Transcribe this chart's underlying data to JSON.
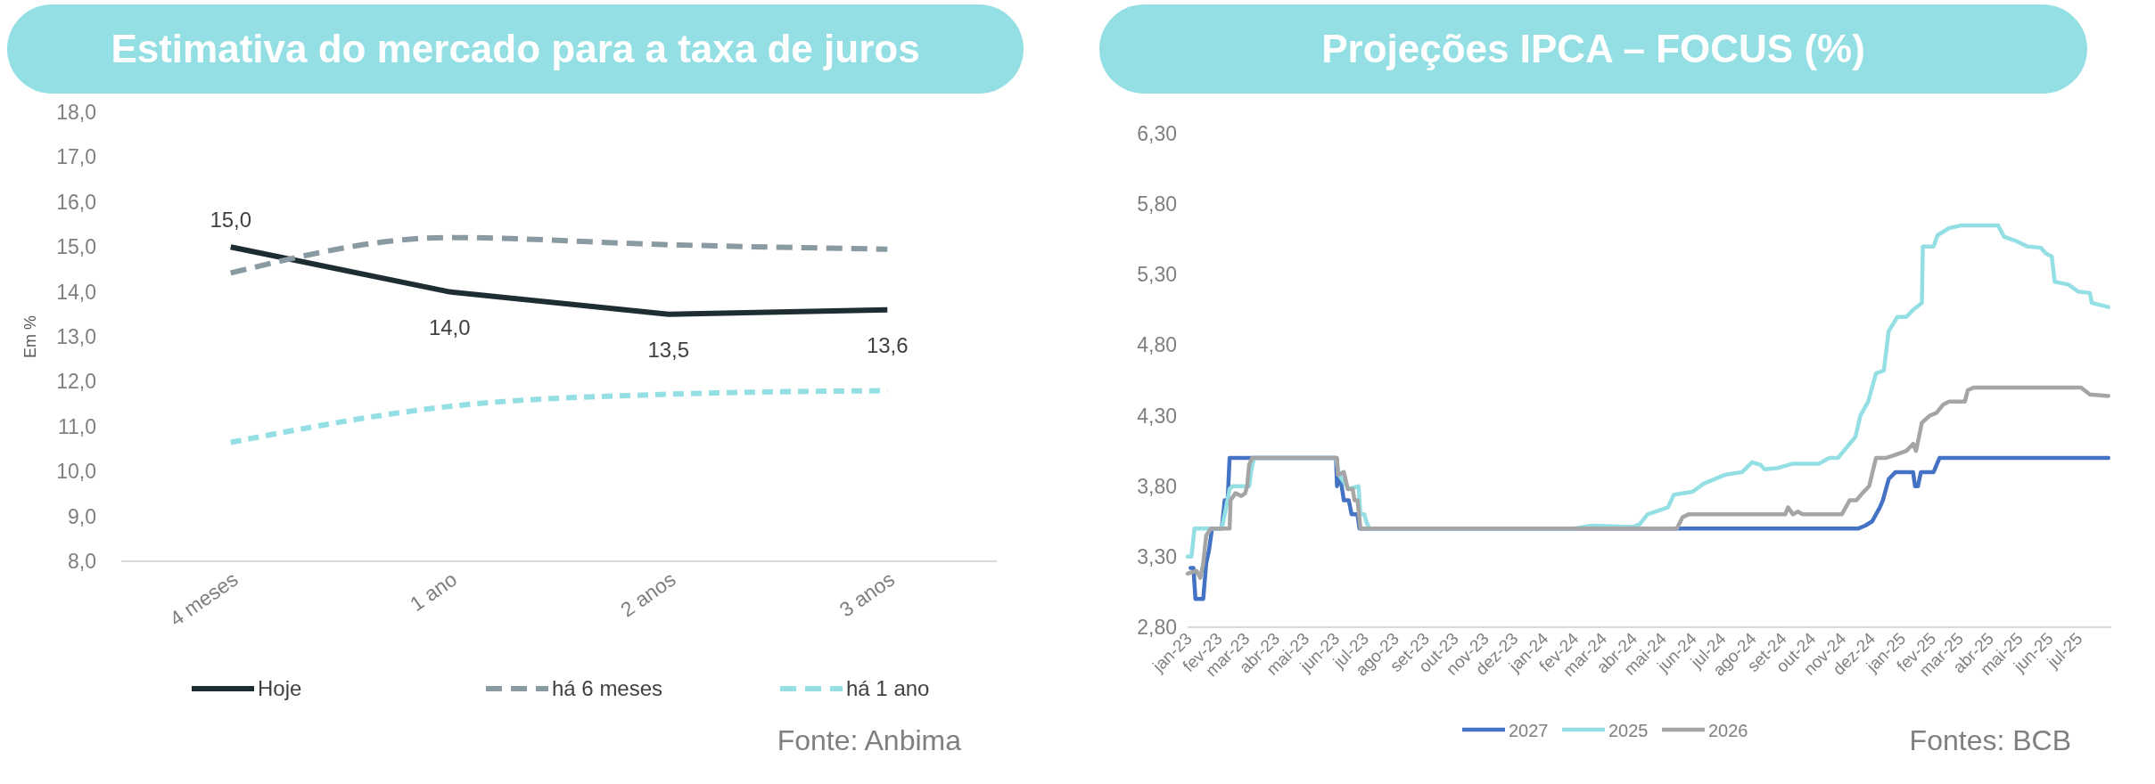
{
  "chart_data": [
    {
      "type": "line",
      "title": "Estimativa do mercado para a taxa de juros",
      "ylabel": "Em %",
      "categories": [
        "4 meses",
        "1 ano",
        "2 anos",
        "3 anos"
      ],
      "series": [
        {
          "name": "Hoje",
          "color": "#1e2d32",
          "values": [
            15.0,
            14.0,
            13.5,
            13.6
          ],
          "value_labels": [
            "15,0",
            "14,0",
            "13,5",
            "13,6"
          ],
          "line_style": "solid"
        },
        {
          "name": "há 6 meses",
          "color": "#8a9aa3",
          "values": [
            14.42,
            15.21,
            15.05,
            14.95
          ],
          "line_style": "dashed"
        },
        {
          "name": "há 1 ano",
          "color": "#93dfe4",
          "values": [
            10.65,
            11.45,
            11.72,
            11.8
          ],
          "line_style": "dashed"
        }
      ],
      "ylim": [
        8,
        18
      ],
      "yticks": [
        {
          "value": 8,
          "label": "8,0"
        },
        {
          "value": 9,
          "label": "9,0"
        },
        {
          "value": 10,
          "label": "10,0"
        },
        {
          "value": 11,
          "label": "11,0"
        },
        {
          "value": 12,
          "label": "12,0"
        },
        {
          "value": 13,
          "label": "13,0"
        },
        {
          "value": 14,
          "label": "14,0"
        },
        {
          "value": 15,
          "label": "15,0"
        },
        {
          "value": 16,
          "label": "16,0"
        },
        {
          "value": 17,
          "label": "17,0"
        },
        {
          "value": 18,
          "label": "18,0"
        }
      ],
      "grid": false,
      "legend": "bottom",
      "marker": "none",
      "annotations": [
        "Fonte: Anbima"
      ]
    },
    {
      "type": "line",
      "title": "Projeções IPCA – FOCUS (%)",
      "series": [
        {
          "name": "2027",
          "color": "#4472c4",
          "x": [
            "2023-01-04",
            "2023-01-07",
            "2023-01-09",
            "2023-01-17",
            "2023-01-20",
            "2023-01-23",
            "2023-01-26",
            "2023-02-05",
            "2023-02-08",
            "2023-02-11",
            "2023-02-13",
            "2023-06-02",
            "2023-06-03",
            "2023-06-06",
            "2023-06-10",
            "2023-06-15",
            "2023-06-18",
            "2023-06-24",
            "2023-06-26",
            "2024-11-18",
            "2024-11-25",
            "2024-12-02",
            "2024-12-10",
            "2024-12-13",
            "2024-12-19",
            "2024-12-26",
            "2025-01-13",
            "2025-01-15",
            "2025-01-18",
            "2025-01-21",
            "2025-02-03",
            "2025-02-09",
            "2025-08-01"
          ],
          "values": [
            3.22,
            3.22,
            3.0,
            3.0,
            3.25,
            3.35,
            3.5,
            3.5,
            3.7,
            3.7,
            4.0,
            4.0,
            3.8,
            3.88,
            3.7,
            3.7,
            3.6,
            3.6,
            3.5,
            3.5,
            3.52,
            3.55,
            3.65,
            3.7,
            3.85,
            3.9,
            3.9,
            3.8,
            3.8,
            3.9,
            3.9,
            4.0,
            4.0
          ]
        },
        {
          "name": "2025",
          "color": "#93dfe4",
          "x": [
            "2023-01-01",
            "2023-01-05",
            "2023-01-08",
            "2023-02-05",
            "2023-02-08",
            "2023-02-13",
            "2023-02-16",
            "2023-03-05",
            "2023-03-07",
            "2023-03-10",
            "2023-06-02",
            "2023-06-05",
            "2023-06-15",
            "2023-06-25",
            "2023-06-27",
            "2023-07-01",
            "2023-07-03",
            "2023-07-06",
            "2024-02-01",
            "2024-02-19",
            "2024-04-01",
            "2024-04-08",
            "2024-04-16",
            "2024-05-07",
            "2024-05-13",
            "2024-06-01",
            "2024-06-13",
            "2024-07-04",
            "2024-07-22",
            "2024-08-01",
            "2024-08-10",
            "2024-08-14",
            "2024-08-28",
            "2024-09-12",
            "2024-10-09",
            "2024-10-19",
            "2024-10-28",
            "2024-11-09",
            "2024-11-15",
            "2024-11-20",
            "2024-11-28",
            "2024-12-06",
            "2024-12-14",
            "2024-12-19",
            "2024-12-28",
            "2025-01-06",
            "2025-01-13",
            "2025-01-22",
            "2025-01-23",
            "2025-02-03",
            "2025-02-07",
            "2025-02-19",
            "2025-03-04",
            "2025-04-10",
            "2025-04-16",
            "2025-04-28",
            "2025-05-10",
            "2025-05-24",
            "2025-05-29",
            "2025-06-04",
            "2025-06-07",
            "2025-06-21",
            "2025-07-01",
            "2025-07-13",
            "2025-07-15",
            "2025-08-01"
          ],
          "values": [
            3.3,
            3.3,
            3.5,
            3.5,
            3.6,
            3.78,
            3.8,
            3.8,
            3.9,
            4.0,
            4.0,
            3.88,
            3.78,
            3.8,
            3.6,
            3.6,
            3.55,
            3.5,
            3.5,
            3.52,
            3.51,
            3.53,
            3.6,
            3.65,
            3.74,
            3.76,
            3.82,
            3.88,
            3.9,
            3.97,
            3.95,
            3.92,
            3.93,
            3.96,
            3.96,
            4.0,
            4.0,
            4.1,
            4.15,
            4.3,
            4.4,
            4.6,
            4.62,
            4.9,
            5.0,
            5.0,
            5.05,
            5.1,
            5.5,
            5.5,
            5.58,
            5.63,
            5.65,
            5.65,
            5.57,
            5.54,
            5.5,
            5.49,
            5.45,
            5.43,
            5.25,
            5.23,
            5.18,
            5.17,
            5.1,
            5.07
          ]
        },
        {
          "name": "2026",
          "color": "#a5a5a5",
          "x": [
            "2023-01-01",
            "2023-01-10",
            "2023-01-14",
            "2023-01-17",
            "2023-01-20",
            "2023-01-25",
            "2023-02-13",
            "2023-02-14",
            "2023-02-19",
            "2023-02-25",
            "2023-03-01",
            "2023-03-03",
            "2023-03-05",
            "2023-03-08",
            "2023-06-03",
            "2023-06-04",
            "2023-06-10",
            "2023-06-14",
            "2023-06-19",
            "2023-06-21",
            "2023-06-24",
            "2023-06-27",
            "2024-05-16",
            "2024-05-22",
            "2024-05-28",
            "2024-09-04",
            "2024-09-07",
            "2024-09-12",
            "2024-09-17",
            "2024-09-22",
            "2024-11-01",
            "2024-11-09",
            "2024-11-16",
            "2024-11-22",
            "2024-11-29",
            "2024-12-06",
            "2024-12-16",
            "2024-12-25",
            "2025-01-06",
            "2025-01-13",
            "2025-01-16",
            "2025-01-22",
            "2025-01-30",
            "2025-02-06",
            "2025-02-13",
            "2025-02-19",
            "2025-03-07",
            "2025-03-10",
            "2025-03-16",
            "2025-07-04",
            "2025-07-13",
            "2025-08-01"
          ],
          "values": [
            3.18,
            3.2,
            3.15,
            3.25,
            3.45,
            3.5,
            3.5,
            3.7,
            3.75,
            3.73,
            3.75,
            3.8,
            3.95,
            4.0,
            4.0,
            3.88,
            3.9,
            3.78,
            3.78,
            3.7,
            3.7,
            3.5,
            3.5,
            3.58,
            3.6,
            3.6,
            3.65,
            3.6,
            3.62,
            3.6,
            3.6,
            3.7,
            3.7,
            3.75,
            3.8,
            4.0,
            4.0,
            4.02,
            4.05,
            4.1,
            4.05,
            4.25,
            4.3,
            4.32,
            4.38,
            4.4,
            4.4,
            4.48,
            4.5,
            4.5,
            4.45,
            4.44
          ]
        }
      ],
      "xlim": [
        "2023-01-01",
        "2025-08-04"
      ],
      "xticks": [
        {
          "value": "2023-01-01",
          "label": "jan-23"
        },
        {
          "value": "2023-02-01",
          "label": "fev-23"
        },
        {
          "value": "2023-03-01",
          "label": "mar-23"
        },
        {
          "value": "2023-04-01",
          "label": "abr-23"
        },
        {
          "value": "2023-05-01",
          "label": "mai-23"
        },
        {
          "value": "2023-06-01",
          "label": "jun-23"
        },
        {
          "value": "2023-07-01",
          "label": "jul-23"
        },
        {
          "value": "2023-08-01",
          "label": "ago-23"
        },
        {
          "value": "2023-09-01",
          "label": "set-23"
        },
        {
          "value": "2023-10-01",
          "label": "out-23"
        },
        {
          "value": "2023-11-01",
          "label": "nov-23"
        },
        {
          "value": "2023-12-01",
          "label": "dez-23"
        },
        {
          "value": "2024-01-01",
          "label": "jan-24"
        },
        {
          "value": "2024-02-01",
          "label": "fev-24"
        },
        {
          "value": "2024-03-01",
          "label": "mar-24"
        },
        {
          "value": "2024-04-01",
          "label": "abr-24"
        },
        {
          "value": "2024-05-01",
          "label": "mai-24"
        },
        {
          "value": "2024-06-01",
          "label": "jun-24"
        },
        {
          "value": "2024-07-01",
          "label": "jul-24"
        },
        {
          "value": "2024-08-01",
          "label": "ago-24"
        },
        {
          "value": "2024-09-01",
          "label": "set-24"
        },
        {
          "value": "2024-10-01",
          "label": "out-24"
        },
        {
          "value": "2024-11-01",
          "label": "nov-24"
        },
        {
          "value": "2024-12-01",
          "label": "dez-24"
        },
        {
          "value": "2025-01-01",
          "label": "jan-25"
        },
        {
          "value": "2025-02-01",
          "label": "fev-25"
        },
        {
          "value": "2025-03-01",
          "label": "mar-25"
        },
        {
          "value": "2025-04-01",
          "label": "abr-25"
        },
        {
          "value": "2025-05-01",
          "label": "mai-25"
        },
        {
          "value": "2025-06-01",
          "label": "jun-25"
        },
        {
          "value": "2025-07-01",
          "label": "jul-25"
        }
      ],
      "ylim": [
        2.8,
        6.3
      ],
      "yticks": [
        {
          "value": 2.8,
          "label": "2,80"
        },
        {
          "value": 3.3,
          "label": "3,30"
        },
        {
          "value": 3.8,
          "label": "3,80"
        },
        {
          "value": 4.3,
          "label": "4,30"
        },
        {
          "value": 4.8,
          "label": "4,80"
        },
        {
          "value": 5.3,
          "label": "5,30"
        },
        {
          "value": 5.8,
          "label": "5,80"
        },
        {
          "value": 6.3,
          "label": "6,30"
        }
      ],
      "grid": false,
      "legend": "bottom",
      "marker": "none",
      "annotations": [
        "Fontes: BCB"
      ]
    }
  ]
}
